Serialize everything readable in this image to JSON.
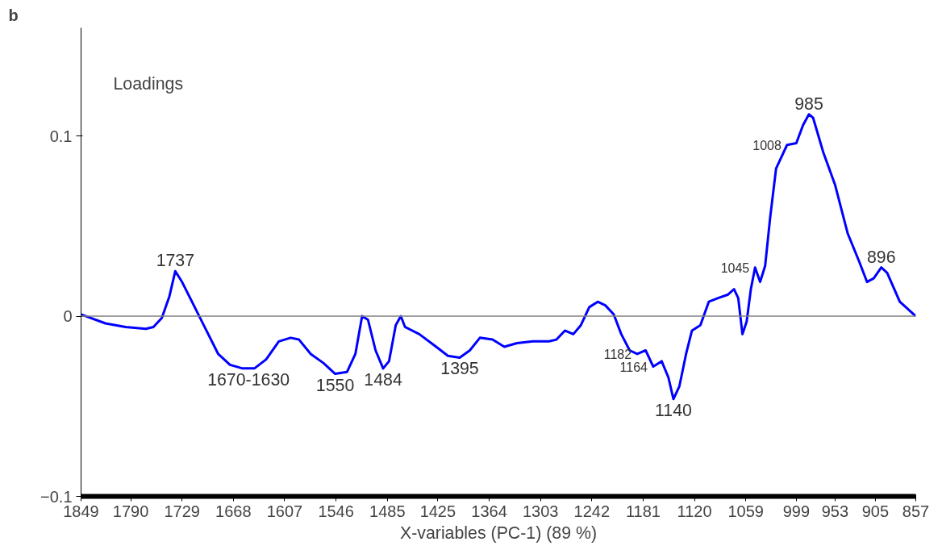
{
  "chart_data": {
    "type": "line",
    "xlabel": "X-variables (PC-1) (89 %)",
    "x": [
      1849,
      1820,
      1796,
      1772,
      1763,
      1753,
      1744,
      1737,
      1729,
      1715,
      1700,
      1686,
      1672,
      1657,
      1643,
      1629,
      1614,
      1600,
      1590,
      1576,
      1561,
      1547,
      1533,
      1523,
      1515,
      1508,
      1499,
      1490,
      1483,
      1475,
      1469,
      1464,
      1447,
      1427,
      1413,
      1399,
      1387,
      1375,
      1360,
      1346,
      1331,
      1312,
      1293,
      1284,
      1274,
      1264,
      1255,
      1245,
      1235,
      1226,
      1216,
      1207,
      1197,
      1188,
      1178,
      1169,
      1159,
      1151,
      1145,
      1138,
      1130,
      1123,
      1113,
      1103,
      1092,
      1080,
      1073,
      1068,
      1063,
      1058,
      1053,
      1048,
      1042,
      1036,
      1030,
      1023,
      1010,
      999,
      991,
      984,
      979,
      967,
      953,
      938,
      924,
      915,
      907,
      898,
      891,
      876,
      857
    ],
    "series": [
      {
        "color": "#0000ff",
        "values": [
          0.001,
          -0.004,
          -0.006,
          -0.007,
          -0.006,
          -0.001,
          0.011,
          0.025,
          0.019,
          0.006,
          -0.008,
          -0.021,
          -0.027,
          -0.029,
          -0.029,
          -0.024,
          -0.014,
          -0.012,
          -0.013,
          -0.021,
          -0.026,
          -0.032,
          -0.031,
          -0.021,
          0.0,
          -0.002,
          -0.019,
          -0.029,
          -0.025,
          -0.005,
          0.0,
          -0.006,
          -0.01,
          -0.017,
          -0.022,
          -0.023,
          -0.019,
          -0.012,
          -0.013,
          -0.017,
          -0.015,
          -0.014,
          -0.014,
          -0.013,
          -0.008,
          -0.01,
          -0.005,
          0.005,
          0.008,
          0.006,
          0.001,
          -0.01,
          -0.019,
          -0.021,
          -0.019,
          -0.028,
          -0.025,
          -0.034,
          -0.046,
          -0.039,
          -0.021,
          -0.008,
          -0.005,
          0.008,
          0.01,
          0.012,
          0.015,
          0.01,
          -0.01,
          -0.003,
          0.015,
          0.027,
          0.019,
          0.028,
          0.055,
          0.082,
          0.095,
          0.096,
          0.106,
          0.112,
          0.11,
          0.091,
          0.073,
          0.046,
          0.03,
          0.019,
          0.021,
          0.027,
          0.024,
          0.008,
          0.0
        ]
      }
    ],
    "xlim": [
      1849,
      857
    ],
    "ylim": [
      -0.1,
      0.16
    ],
    "xticks": [
      1849,
      1790,
      1729,
      1668,
      1607,
      1546,
      1485,
      1425,
      1364,
      1303,
      1242,
      1181,
      1120,
      1059,
      999,
      953,
      905,
      857
    ],
    "yticks": [
      0.1,
      0,
      -0.1
    ],
    "grid": false,
    "line_style": "solid",
    "marker": "none",
    "ref_lines": [
      {
        "axis": "y",
        "value": 0,
        "color": "#808080"
      }
    ],
    "annotations": [
      "b",
      "Loadings",
      {
        "text": "1737",
        "x": 1737,
        "y": 0.025
      },
      {
        "text": "1670-1630",
        "x": 1650,
        "y": -0.029
      },
      {
        "text": "1550",
        "x": 1547,
        "y": -0.032
      },
      {
        "text": "1484",
        "x": 1490,
        "y": -0.029
      },
      {
        "text": "1395",
        "x": 1399,
        "y": -0.023
      },
      {
        "text": "1182",
        "x": 1188,
        "y": -0.021
      },
      {
        "text": "1164",
        "x": 1169,
        "y": -0.028
      },
      {
        "text": "1140",
        "x": 1145,
        "y": -0.046
      },
      {
        "text": "1045",
        "x": 1048,
        "y": 0.027
      },
      {
        "text": "1008",
        "x": 1010,
        "y": 0.095
      },
      {
        "text": "985",
        "x": 984,
        "y": 0.112
      },
      {
        "text": "896",
        "x": 898,
        "y": 0.027
      }
    ]
  }
}
